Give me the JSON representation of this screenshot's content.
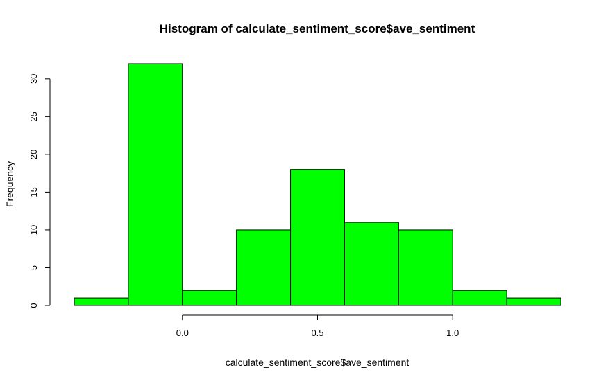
{
  "chart_data": {
    "type": "bar",
    "title": "Histogram of calculate_sentiment_score$ave_sentiment",
    "xlabel": "calculate_sentiment_score$ave_sentiment",
    "ylabel": "Frequency",
    "bin_edges": [
      -0.4,
      -0.2,
      0.0,
      0.2,
      0.4,
      0.6,
      0.8,
      1.0,
      1.2,
      1.4
    ],
    "values": [
      1,
      32,
      2,
      10,
      18,
      11,
      10,
      2,
      1
    ],
    "x_ticks": [
      0.0,
      0.5,
      1.0
    ],
    "x_tick_labels": [
      "0.0",
      "0.5",
      "1.0"
    ],
    "y_ticks": [
      0,
      5,
      10,
      15,
      20,
      25,
      30
    ],
    "y_tick_labels": [
      "0",
      "5",
      "10",
      "15",
      "20",
      "25",
      "30"
    ],
    "xlim": [
      -0.4,
      1.4
    ],
    "ylim": [
      0,
      32
    ],
    "bar_color": "#00ff00",
    "edge_color": "#000000",
    "grid": false
  }
}
